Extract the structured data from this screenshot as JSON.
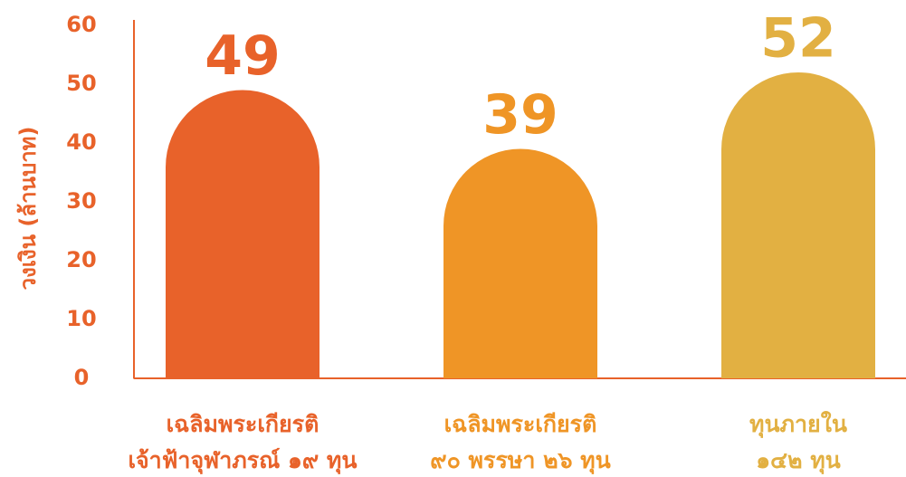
{
  "chart_data": {
    "type": "bar",
    "y_label": "วงเงิน (ล้านบาท)",
    "categories": [
      [
        "เฉลิมพระเกียรติ",
        "เจ้าฟ้าจุฬาภรณ์ ๑๙ ทุน"
      ],
      [
        "เฉลิมพระเกียรติ",
        "๙๐ พรรษา ๒๖ ทุน"
      ],
      [
        "ทุนภายใน",
        "๑๔๒ ทุน"
      ]
    ],
    "values": [
      49,
      39,
      52
    ],
    "colors": [
      "#e8622a",
      "#ef9526",
      "#e2b042"
    ],
    "ylim": [
      0,
      60
    ],
    "yticks": [
      0,
      10,
      20,
      30,
      40,
      50,
      60
    ],
    "axis_color": "#e8622a"
  }
}
